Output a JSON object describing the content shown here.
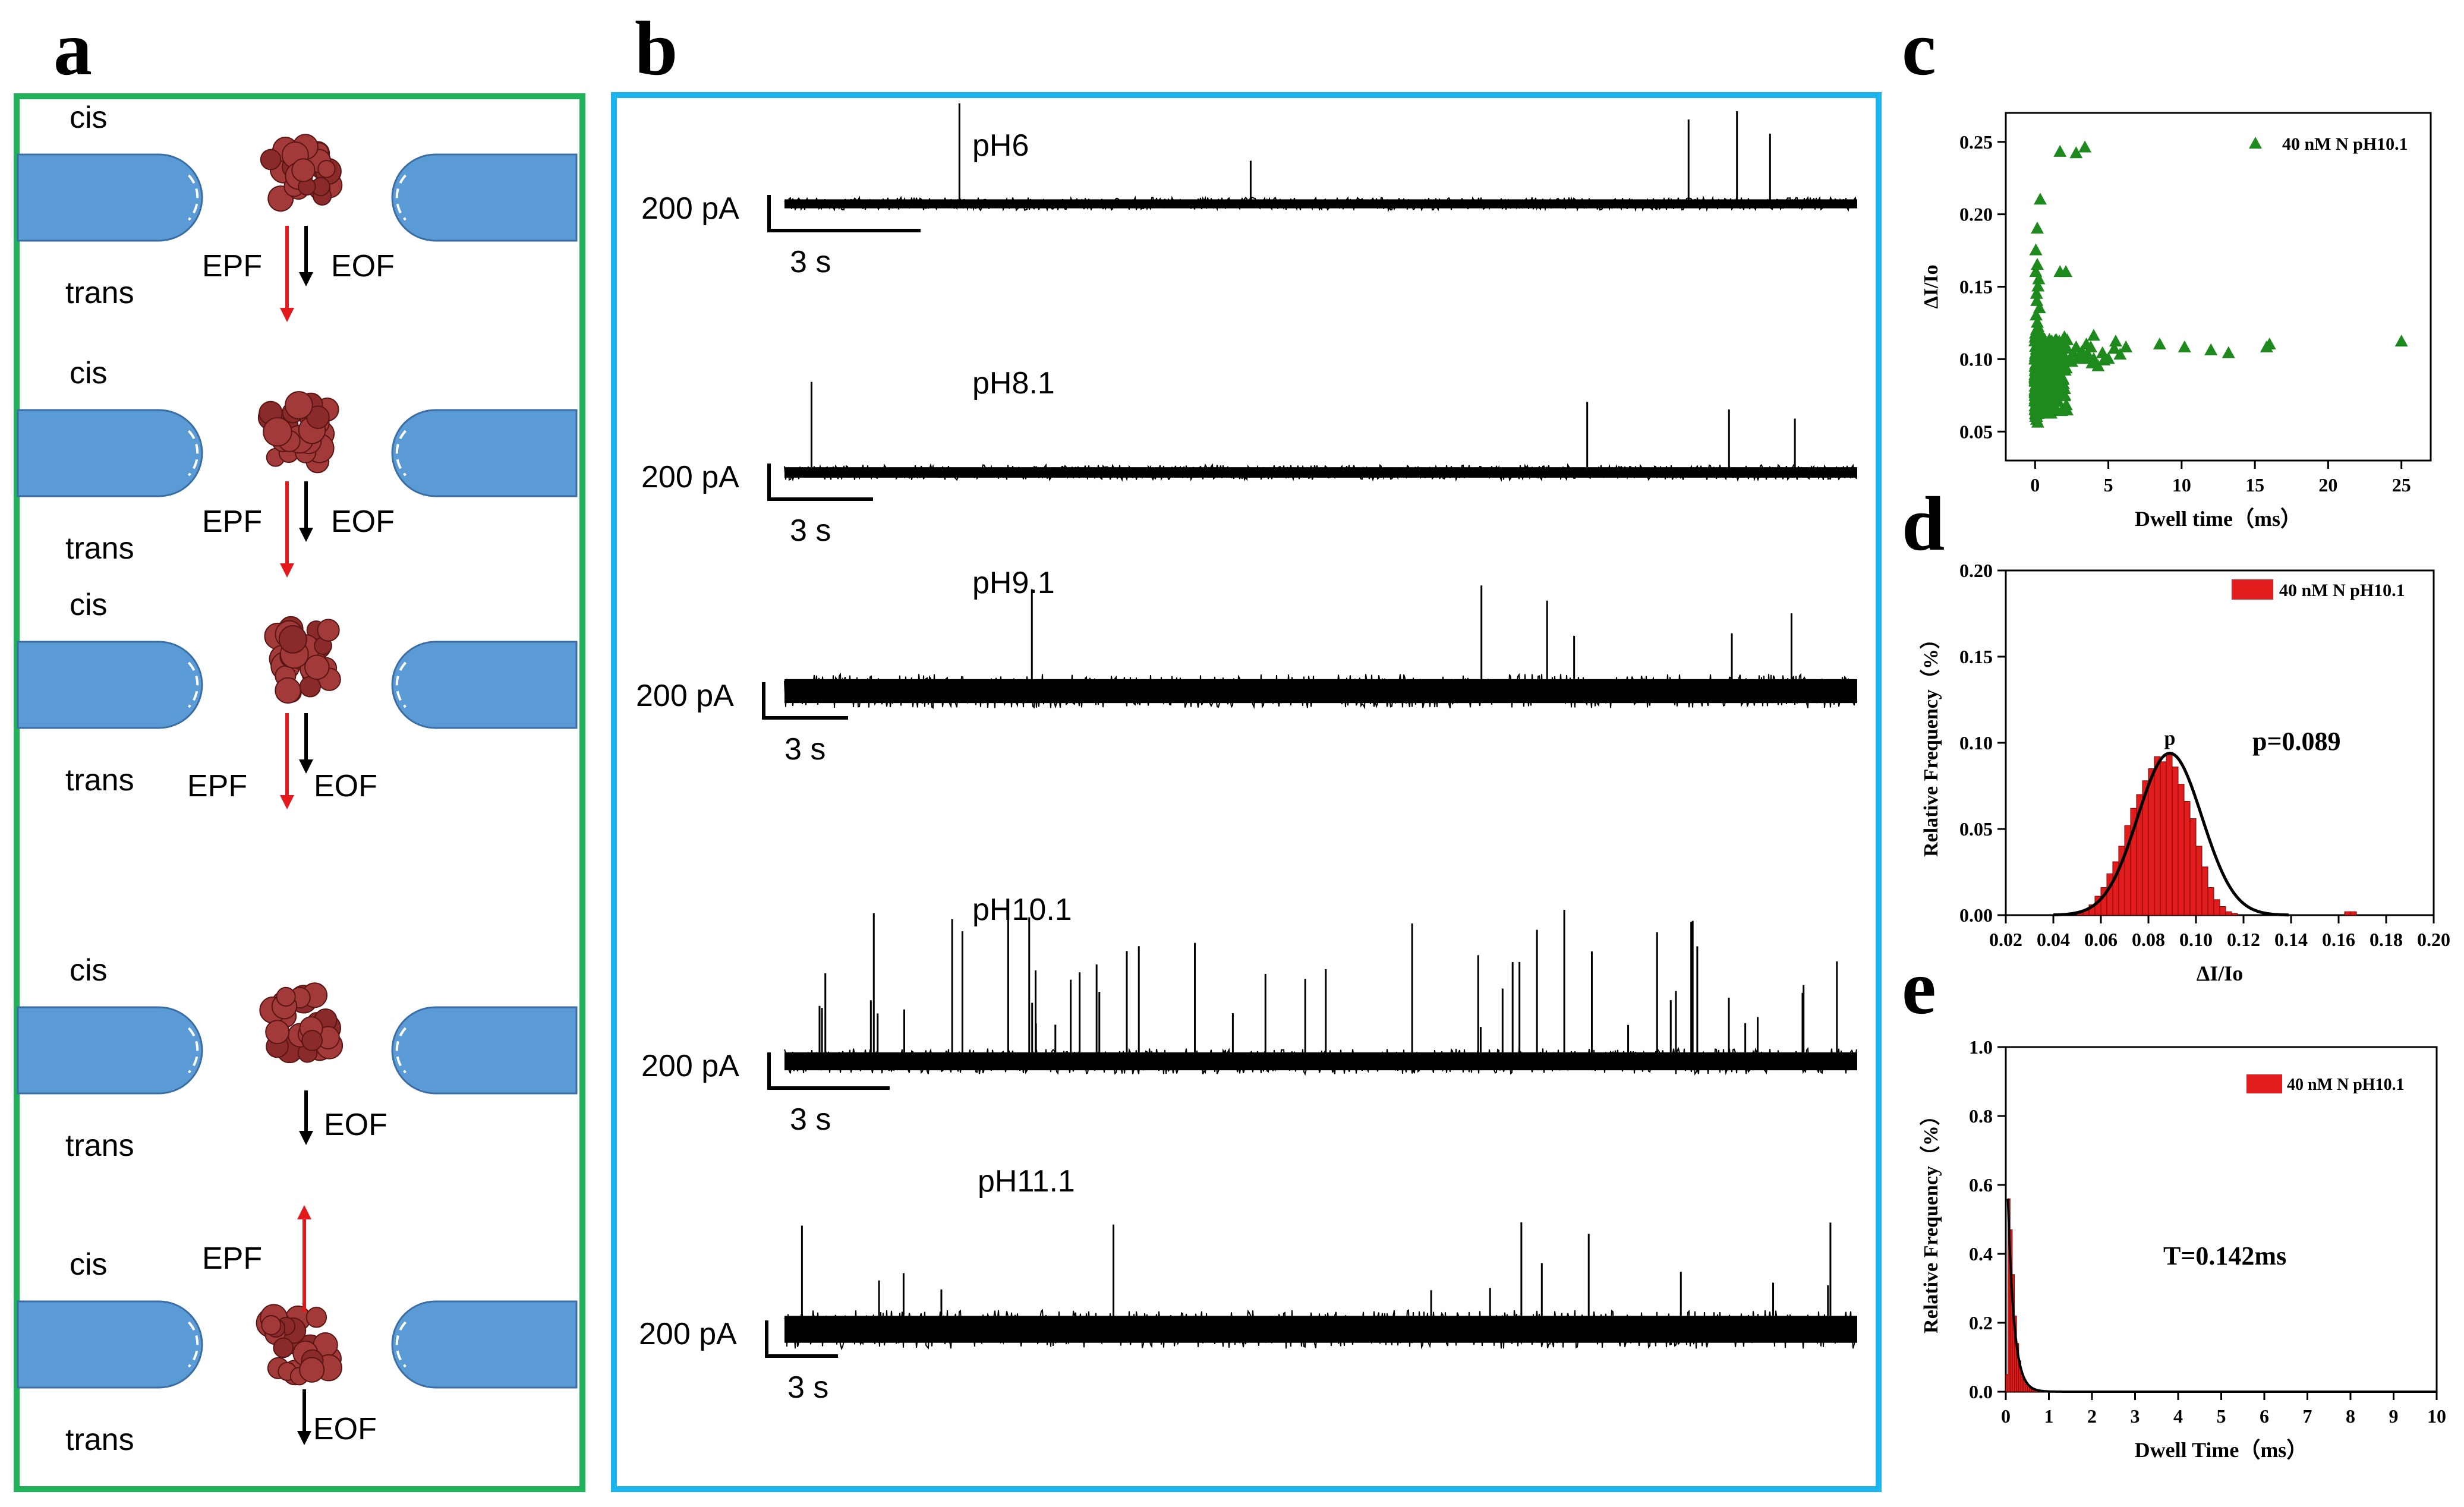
{
  "panels": {
    "a": {
      "letter": "a",
      "border_color": "#1fb25a",
      "pore_color": "#5b9bd5",
      "protein_icon": "protein-cluster-icon",
      "rows": [
        {
          "top": "cis",
          "bottom": "trans",
          "epf": "EPF",
          "eof": "EOF",
          "epf_dir": "down"
        },
        {
          "top": "cis",
          "bottom": "trans",
          "epf": "EPF",
          "eof": "EOF",
          "epf_dir": "down"
        },
        {
          "top": "cis",
          "bottom": "trans",
          "epf": "EPF",
          "eof": "EOF",
          "epf_dir": "down"
        },
        {
          "top": "cis",
          "bottom": "trans",
          "epf": "",
          "eof": "EOF",
          "epf_dir": "none"
        },
        {
          "top": "cis",
          "bottom": "trans",
          "epf": "EPF",
          "eof": "EOF",
          "epf_dir": "up"
        }
      ]
    },
    "b": {
      "letter": "b",
      "border_color": "#1cb4ec",
      "traces": [
        {
          "label": "pH6",
          "scale_current": "200 pA",
          "scale_time": "3 s",
          "noise": 0.6,
          "spike_count": 5
        },
        {
          "label": "pH8.1",
          "scale_current": "200 pA",
          "scale_time": "3 s",
          "noise": 0.7,
          "spike_count": 4
        },
        {
          "label": "pH9.1",
          "scale_current": "200 pA",
          "scale_time": "3 s",
          "noise": 1.6,
          "spike_count": 6
        },
        {
          "label": "pH10.1",
          "scale_current": "200 pA",
          "scale_time": "3 s",
          "noise": 1.2,
          "spike_count": 48
        },
        {
          "label": "pH11.1",
          "scale_current": "200 pA",
          "scale_time": "3 s",
          "noise": 1.8,
          "spike_count": 14
        }
      ]
    },
    "c": {
      "letter": "c"
    },
    "d": {
      "letter": "d"
    },
    "e": {
      "letter": "e"
    }
  },
  "chart_data": [
    {
      "type": "scatter",
      "panel": "c",
      "xlabel": "Dwell time（ms）",
      "ylabel": "ΔI/Io",
      "xlim": [
        -2,
        27
      ],
      "ylim": [
        0.03,
        0.27
      ],
      "xticks": [
        "0",
        "5",
        "10",
        "15",
        "20",
        "25"
      ],
      "yticks": [
        "0.05",
        "0.10",
        "0.15",
        "0.20",
        "0.25"
      ],
      "color": "#1e8a1e",
      "series": [
        {
          "name": "40 nM N pH10.1",
          "x": [
            0.05,
            0.08,
            0.1,
            0.12,
            0.15,
            0.2,
            0.25,
            0.3,
            0.35,
            0.4,
            0.45,
            0.5,
            0.6,
            0.7,
            0.8,
            0.9,
            1.0,
            1.1,
            1.2,
            1.3,
            1.4,
            1.5,
            1.6,
            1.7,
            1.8,
            1.9,
            2.0,
            2.2,
            2.4,
            2.6,
            2.8,
            3.0,
            3.2,
            3.4,
            3.6,
            3.8,
            4.0,
            4.3,
            4.6,
            5.0,
            5.4,
            5.8,
            6.2,
            0.03,
            0.06,
            0.09,
            0.11,
            0.14,
            0.18,
            0.22,
            0.28,
            0.33,
            0.05,
            0.1,
            0.15,
            0.2,
            0.25,
            0.3,
            0.4,
            0.5,
            0.07,
            0.12,
            0.05,
            0.15,
            0.2,
            0.1,
            0.3,
            0.2,
            1.5,
            2.0,
            3.5,
            4.0,
            5.5,
            8.5,
            10.2,
            12.0,
            13.2,
            15.8,
            16.0,
            25.0,
            2.1,
            0.35,
            0.05,
            0.15,
            0.25,
            1.7,
            0.1,
            0.2,
            0.1,
            0.2,
            0.3,
            0.1,
            0.5,
            0.8,
            1.2,
            1.8,
            2.5,
            3.0,
            3.9,
            4.7
          ],
          "y": [
            0.06,
            0.065,
            0.07,
            0.075,
            0.08,
            0.085,
            0.09,
            0.095,
            0.092,
            0.088,
            0.095,
            0.1,
            0.097,
            0.093,
            0.1,
            0.102,
            0.098,
            0.105,
            0.1,
            0.095,
            0.103,
            0.108,
            0.1,
            0.105,
            0.098,
            0.11,
            0.102,
            0.107,
            0.1,
            0.104,
            0.108,
            0.102,
            0.105,
            0.1,
            0.103,
            0.108,
            0.1,
            0.095,
            0.104,
            0.1,
            0.107,
            0.103,
            0.108,
            0.062,
            0.068,
            0.072,
            0.078,
            0.083,
            0.087,
            0.091,
            0.096,
            0.099,
            0.115,
            0.12,
            0.125,
            0.118,
            0.11,
            0.113,
            0.117,
            0.109,
            0.13,
            0.14,
            0.16,
            0.165,
            0.15,
            0.145,
            0.135,
            0.122,
            0.112,
            0.115,
            0.11,
            0.116,
            0.112,
            0.11,
            0.108,
            0.106,
            0.104,
            0.108,
            0.11,
            0.112,
            0.16,
            0.21,
            0.175,
            0.19,
            0.155,
            0.243,
            0.06,
            0.062,
            0.058,
            0.064,
            0.066,
            0.072,
            0.082,
            0.09,
            0.094,
            0.096,
            0.098,
            0.1,
            0.097,
            0.099
          ],
          "extra_points": [
            [
              2.8,
              0.242
            ],
            [
              3.4,
              0.246
            ],
            [
              1.7,
              0.16
            ]
          ]
        }
      ],
      "legend": "top-right"
    },
    {
      "type": "bar",
      "panel": "d",
      "xlabel": "ΔI/Io",
      "ylabel": "Relative Frequency（%）",
      "xlim": [
        0.02,
        0.2
      ],
      "ylim": [
        0.0,
        0.2
      ],
      "xticks": [
        "0.02",
        "0.04",
        "0.06",
        "0.08",
        "0.10",
        "0.12",
        "0.14",
        "0.16",
        "0.18",
        "0.20"
      ],
      "yticks": [
        "0.00",
        "0.05",
        "0.10",
        "0.15",
        "0.20"
      ],
      "bar_color": "#e01c1c",
      "series": [
        {
          "name": "40 nM N pH10.1"
        }
      ],
      "bins_start": 0.05,
      "bin_width": 0.0025,
      "values": [
        0.001,
        0.003,
        0.006,
        0.011,
        0.016,
        0.024,
        0.031,
        0.04,
        0.052,
        0.062,
        0.07,
        0.078,
        0.085,
        0.092,
        0.089,
        0.093,
        0.086,
        0.076,
        0.066,
        0.056,
        0.04,
        0.028,
        0.016,
        0.009,
        0.005,
        0.002,
        0.001,
        0.0,
        0.0,
        0.0,
        0.0,
        0.0,
        0.0,
        0.0,
        0.0,
        0.0,
        0.0,
        0.0,
        0.0,
        0.0,
        0.0,
        0.0,
        0.0,
        0.0,
        0.0,
        0.002,
        0.002
      ],
      "fit": {
        "mean": 0.089,
        "sigma": 0.0135,
        "amplitude": 0.094
      },
      "peak_marker": "p",
      "annotation": "p=0.089",
      "legend": "top-right"
    },
    {
      "type": "bar",
      "panel": "e",
      "xlabel": "Dwell Time（ms）",
      "ylabel": "Relative Frequency（%）",
      "xlim": [
        0,
        10
      ],
      "ylim": [
        0.0,
        1.0
      ],
      "xticks": [
        "0",
        "1",
        "2",
        "3",
        "4",
        "5",
        "6",
        "7",
        "8",
        "9",
        "10"
      ],
      "yticks": [
        "0.0",
        "0.2",
        "0.4",
        "0.6",
        "0.8",
        "1.0"
      ],
      "bar_color": "#e01c1c",
      "series": [
        {
          "name": "40 nM N pH10.1"
        }
      ],
      "bins_start": 0.0,
      "bin_width": 0.05,
      "values": [
        0.05,
        0.56,
        0.47,
        0.34,
        0.22,
        0.14,
        0.09,
        0.055,
        0.035,
        0.022,
        0.014,
        0.009,
        0.006,
        0.004,
        0.003,
        0.002,
        0.001
      ],
      "fit": {
        "tau": 0.142,
        "amplitude": 0.56
      },
      "annotation": "T=0.142ms",
      "legend": "top-right"
    }
  ]
}
